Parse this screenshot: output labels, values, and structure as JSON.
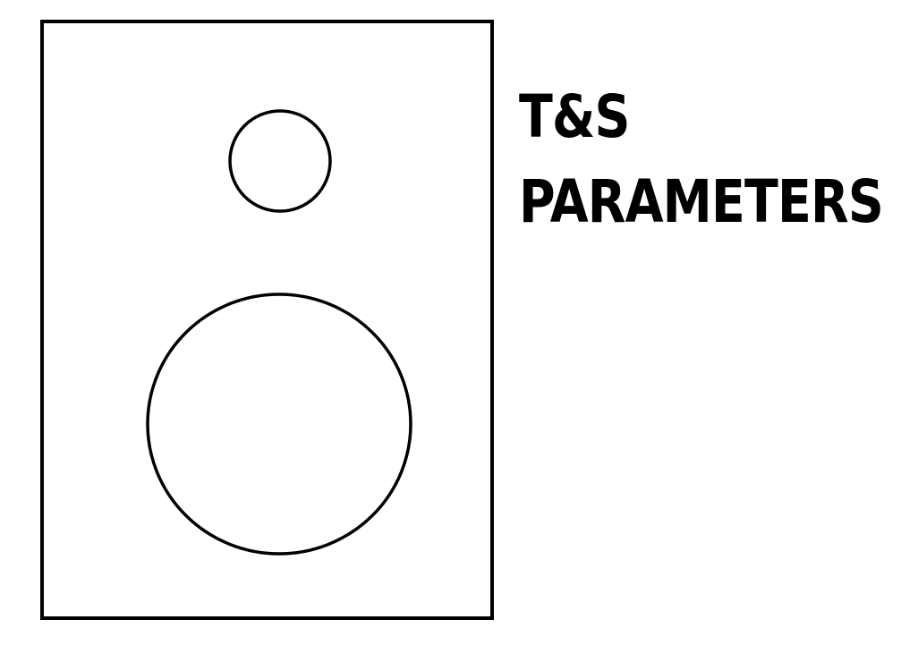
{
  "title": {
    "line1": "T&S",
    "line2": "PARAMETERS"
  },
  "colors": {
    "stroke": "#000000",
    "background": "#ffffff",
    "text": "#000000"
  },
  "icons": {
    "cabinet": "speaker-cabinet-icon",
    "tweeter": "tweeter-icon",
    "woofer": "woofer-icon"
  }
}
